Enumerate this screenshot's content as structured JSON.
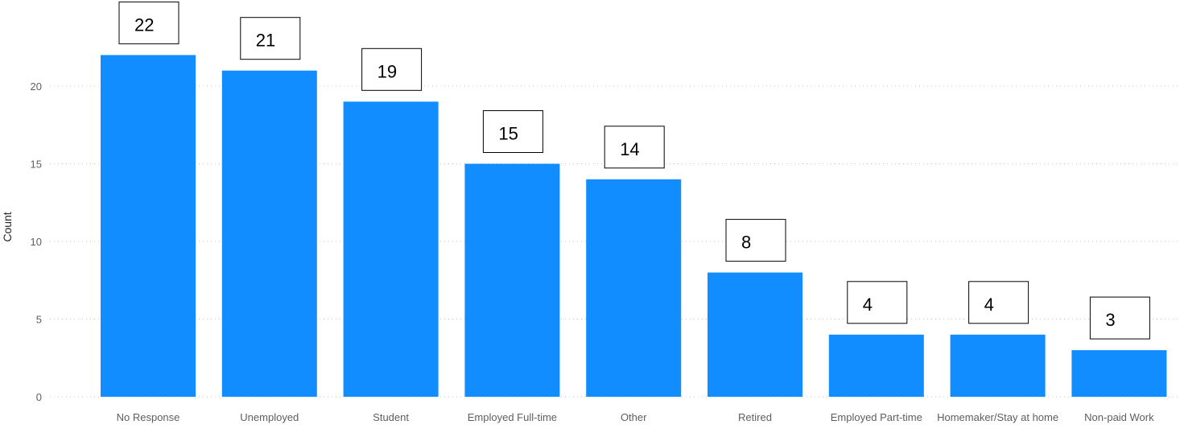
{
  "chart_data": {
    "type": "bar",
    "title": "",
    "xlabel": "",
    "ylabel": "Count",
    "ylim": [
      0,
      22
    ],
    "yticks": [
      0,
      5,
      10,
      15,
      20
    ],
    "grid": "horizontal-dotted",
    "bar_color": "#118dff",
    "categories": [
      "No Response",
      "Unemployed",
      "Student",
      "Employed Full-time",
      "Other",
      "Retired",
      "Employed Part-time",
      "Homemaker/Stay at home",
      "Non-paid Work"
    ],
    "values": [
      22,
      21,
      19,
      15,
      14,
      8,
      4,
      4,
      3
    ],
    "data_labels": [
      "22",
      "21",
      "19",
      "15",
      "14",
      "8",
      "4",
      "4",
      "3"
    ]
  }
}
